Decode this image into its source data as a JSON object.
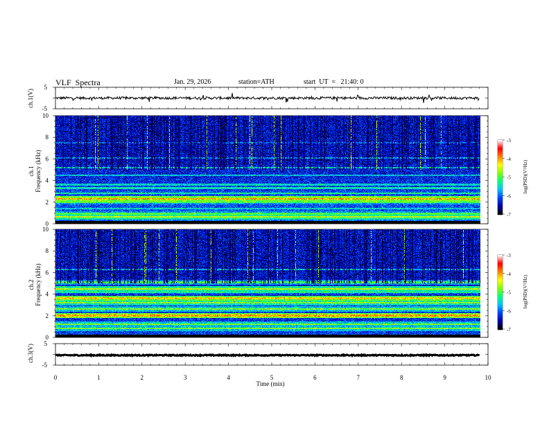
{
  "header": {
    "title": "VLF  Spectra",
    "date": "Jan. 29, 2026",
    "station": "station=ATH",
    "start": "start  UT  =   21:40: 0"
  },
  "panels": {
    "ch1_voltage": {
      "ylabel": "ch.1(V)",
      "yticks": [
        "5",
        "-5"
      ]
    },
    "ch1_spectrogram": {
      "ylabel": "ch.1\nFrequency  (kHz)",
      "ylabel_line1": "ch.1",
      "ylabel_line2": "Frequency  (kHz)",
      "yticks": [
        "0",
        "2",
        "4",
        "6",
        "8",
        "10"
      ]
    },
    "ch2_spectrogram": {
      "ylabel_line1": "ch.2",
      "ylabel_line2": "Frequency  (kHz)",
      "yticks": [
        "0",
        "2",
        "4",
        "6",
        "8",
        "10"
      ]
    },
    "ch3_voltage": {
      "ylabel": "ch.3(V)",
      "yticks": [
        "5",
        "-5"
      ]
    }
  },
  "colorbar": {
    "label": "log(PSD)(V²/Hz)",
    "ticks": [
      "-3",
      "-4",
      "-5",
      "-6",
      "-7"
    ],
    "colors": [
      "#000000",
      "#0000a0",
      "#0040ff",
      "#00c0ff",
      "#00ff80",
      "#80ff00",
      "#ffff00",
      "#ff8000",
      "#ff0000",
      "#ffffff"
    ]
  },
  "xaxis": {
    "label": "Time  (min)",
    "ticks": [
      "0",
      "1",
      "2",
      "3",
      "4",
      "5",
      "6",
      "7",
      "8",
      "9",
      "10"
    ]
  },
  "chart_data": {
    "type": "heatmap",
    "title": "VLF  Spectra",
    "xlabel": "Time  (min)",
    "xlim": [
      0,
      10
    ],
    "data_end_min": 9.8,
    "series": [
      {
        "name": "ch.1(V)",
        "kind": "line",
        "ylim": [
          -5,
          5
        ],
        "mean_level": 0.0
      },
      {
        "name": "ch.1",
        "kind": "spectrogram",
        "ylabel": "Frequency  (kHz)",
        "ylim": [
          0,
          10
        ],
        "zlim": [
          -7,
          -3
        ],
        "bands_khz": [
          {
            "f": 0.3,
            "logpsd": -7.0
          },
          {
            "f": 0.6,
            "logpsd": -4.5
          },
          {
            "f": 0.9,
            "logpsd": -5.0
          },
          {
            "f": 1.4,
            "logpsd": -5.5
          },
          {
            "f": 2.0,
            "logpsd": -5.0
          },
          {
            "f": 2.3,
            "logpsd": -4.0
          },
          {
            "f": 2.8,
            "logpsd": -5.3
          },
          {
            "f": 3.3,
            "logpsd": -5.4
          },
          {
            "f": 3.6,
            "logpsd": -5.5
          },
          {
            "f": 4.5,
            "logpsd": -5.6
          },
          {
            "f": 5.2,
            "logpsd": -5.5
          },
          {
            "f": 6.1,
            "logpsd": -5.7
          },
          {
            "f": 7.5,
            "logpsd": -6.0
          }
        ]
      },
      {
        "name": "ch.2",
        "kind": "spectrogram",
        "ylabel": "Frequency  (kHz)",
        "ylim": [
          0,
          10
        ],
        "zlim": [
          -7,
          -3
        ],
        "bands_khz": [
          {
            "f": 0.3,
            "logpsd": -7.0
          },
          {
            "f": 0.8,
            "logpsd": -4.8
          },
          {
            "f": 1.2,
            "logpsd": -4.8
          },
          {
            "f": 2.0,
            "logpsd": -4.0
          },
          {
            "f": 2.6,
            "logpsd": -4.8
          },
          {
            "f": 3.2,
            "logpsd": -4.7
          },
          {
            "f": 3.6,
            "logpsd": -4.2
          },
          {
            "f": 4.2,
            "logpsd": -5.3
          },
          {
            "f": 4.5,
            "logpsd": -4.5
          },
          {
            "f": 5.1,
            "logpsd": -5.0
          },
          {
            "f": 6.3,
            "logpsd": -5.6
          }
        ]
      },
      {
        "name": "ch.3(V)",
        "kind": "line",
        "ylim": [
          -5,
          5
        ],
        "mean_level": -0.4
      }
    ]
  }
}
